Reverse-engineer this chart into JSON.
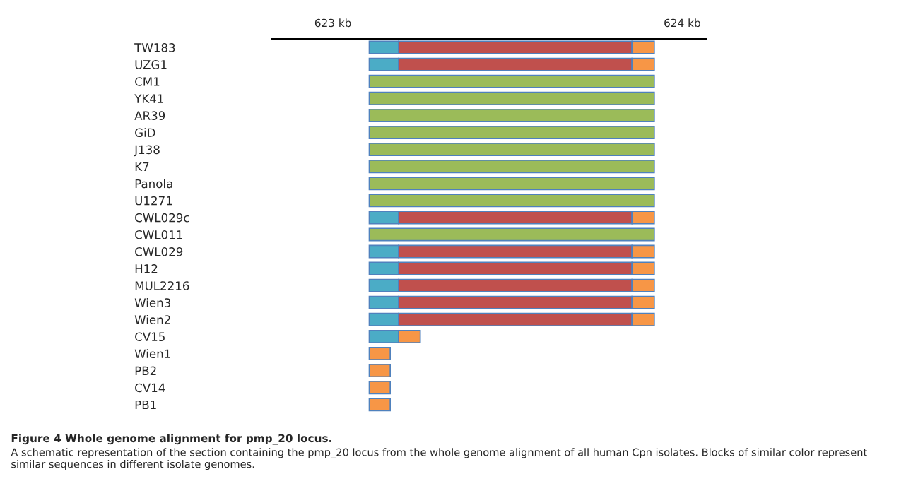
{
  "chart_data": {
    "type": "bar",
    "orientation": "horizontal",
    "title": "Figure 4 Whole genome alignment for pmp_20 locus.",
    "annotations": [
      "A schematic representation of the section containing the pmp_20 locus from the whole genome alignment of all human Cpn isolates. Blocks of similar color represent similar sequences in different isolate genomes."
    ],
    "categories": [
      "TW183",
      "UZG1",
      "CM1",
      "YK41",
      "AR39",
      "GiD",
      "J138",
      "K7",
      "Panola",
      "U1271",
      "CWL029c",
      "CWL011",
      "CWL029",
      "H12",
      "MUL2216",
      "Wien3",
      "Wien2",
      "CV15",
      "Wien1",
      "PB2",
      "CV14",
      "PB1"
    ],
    "series": [
      {
        "color": "#4bacc6",
        "base": [
          623.104,
          623.104,
          null,
          null,
          null,
          null,
          null,
          null,
          null,
          null,
          623.104,
          null,
          623.104,
          623.104,
          623.104,
          623.104,
          623.104,
          623.104,
          null,
          null,
          null,
          null
        ],
        "values": [
          0.084,
          0.084,
          null,
          null,
          null,
          null,
          null,
          null,
          null,
          null,
          0.084,
          null,
          0.084,
          0.084,
          0.084,
          0.084,
          0.084,
          0.084,
          null,
          null,
          null,
          null
        ]
      },
      {
        "color": "#c0504d",
        "base": [
          623.188,
          623.188,
          null,
          null,
          null,
          null,
          null,
          null,
          null,
          null,
          623.188,
          null,
          623.188,
          623.188,
          623.188,
          623.188,
          623.188,
          null,
          null,
          null,
          null,
          null
        ],
        "values": [
          0.668,
          0.668,
          null,
          null,
          null,
          null,
          null,
          null,
          null,
          null,
          0.668,
          null,
          0.668,
          0.668,
          0.668,
          0.668,
          0.668,
          null,
          null,
          null,
          null,
          null
        ]
      },
      {
        "color": "#f79646",
        "base": [
          623.856,
          623.856,
          null,
          null,
          null,
          null,
          null,
          null,
          null,
          null,
          623.856,
          null,
          623.856,
          623.856,
          623.856,
          623.856,
          623.856,
          623.188,
          623.104,
          623.104,
          623.104,
          623.104
        ],
        "values": [
          0.064,
          0.064,
          null,
          null,
          null,
          null,
          null,
          null,
          null,
          null,
          0.064,
          null,
          0.064,
          0.064,
          0.064,
          0.064,
          0.064,
          0.062,
          0.06,
          0.06,
          0.06,
          0.06
        ]
      },
      {
        "color": "#9bbb59",
        "base": [
          null,
          null,
          623.104,
          623.104,
          623.104,
          623.104,
          623.104,
          623.104,
          623.104,
          623.104,
          null,
          623.104,
          null,
          null,
          null,
          null,
          null,
          null,
          null,
          null,
          null,
          null
        ],
        "values": [
          null,
          null,
          0.816,
          0.816,
          0.816,
          0.816,
          0.816,
          0.816,
          0.816,
          0.816,
          null,
          0.816,
          null,
          null,
          null,
          null,
          null,
          null,
          null,
          null,
          null,
          null
        ]
      }
    ],
    "xlim": [
      622.825,
      624.07
    ],
    "xticks": [
      {
        "value": 623,
        "label": "623 kb"
      },
      {
        "value": 624,
        "label": "624 kb"
      }
    ],
    "grid": false,
    "legend": false
  }
}
